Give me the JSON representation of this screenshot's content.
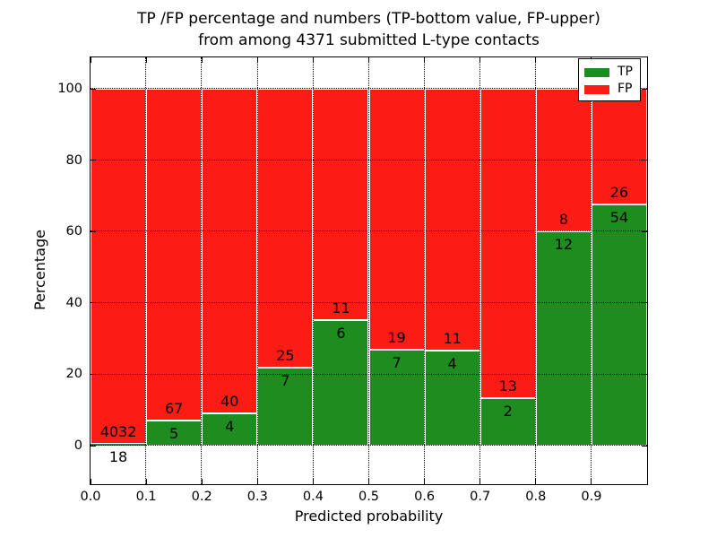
{
  "chart_data": {
    "type": "bar",
    "stacked": true,
    "orientation": "vertical",
    "title_line1": "TP /FP percentage and numbers (TP-bottom value, FP-upper)",
    "title_line2": "from among 4371 submitted L-type contacts",
    "xlabel": "Predicted probability",
    "ylabel": "Percentage",
    "bin_edges": [
      0.0,
      0.1,
      0.2,
      0.3,
      0.4,
      0.5,
      0.6,
      0.7,
      0.8,
      0.9,
      1.0
    ],
    "categories": [
      "0.0-0.1",
      "0.1-0.2",
      "0.2-0.3",
      "0.3-0.4",
      "0.4-0.5",
      "0.5-0.6",
      "0.6-0.7",
      "0.7-0.8",
      "0.8-0.9",
      "0.9-1.0"
    ],
    "series": [
      {
        "name": "TP",
        "color": "#1e8c1e",
        "counts": [
          18,
          5,
          4,
          7,
          6,
          7,
          4,
          2,
          12,
          54
        ]
      },
      {
        "name": "FP",
        "color": "#fb1d15",
        "counts": [
          4032,
          67,
          40,
          25,
          11,
          19,
          11,
          13,
          8,
          26
        ]
      }
    ],
    "tp_pct": [
      0.44,
      6.94,
      9.09,
      21.88,
      35.29,
      26.92,
      26.67,
      13.33,
      60.0,
      67.5
    ],
    "bar_value_labels": "TP count below green top, FP count above green top; bars stack to 100%",
    "x_ticks": [
      "0.0",
      "0.1",
      "0.2",
      "0.3",
      "0.4",
      "0.5",
      "0.6",
      "0.7",
      "0.8",
      "0.9"
    ],
    "y_ticks": [
      0,
      20,
      40,
      60,
      80,
      100
    ],
    "xlim": [
      0.0,
      1.0
    ],
    "ylim": [
      0,
      100
    ],
    "ylim_shown": [
      -10.8,
      109.2
    ],
    "grid": "dotted",
    "bar_edge_color": "#ffffff",
    "legend_position": "upper right"
  }
}
